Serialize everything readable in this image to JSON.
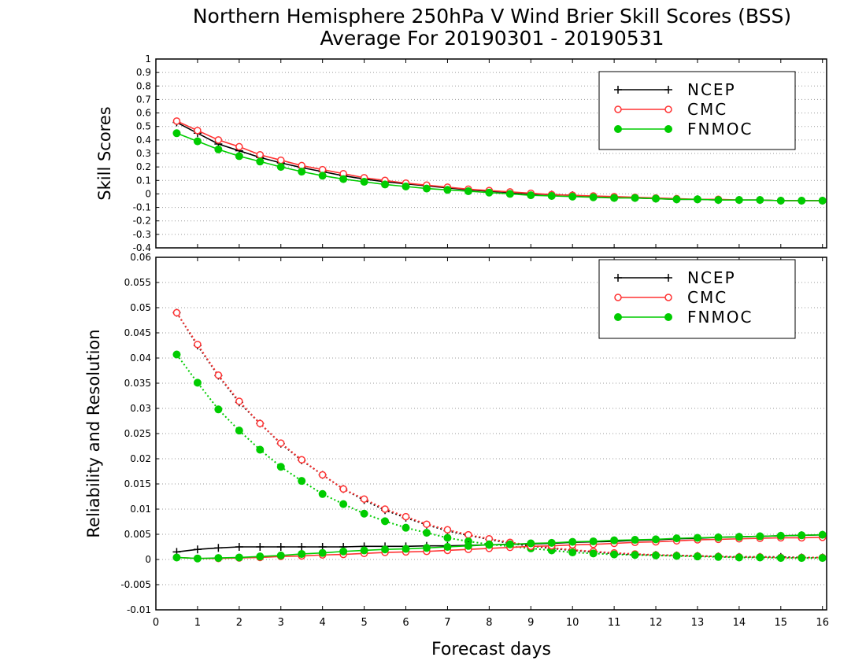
{
  "chart_data": {
    "type": "line",
    "title_line1": "Northern Hemisphere 250hPa V Wind Brier Skill Scores (BSS)",
    "title_line2": "Average For 20190301 - 20190531",
    "xlabel": "Forecast days",
    "x_ticks": [
      "0",
      "1",
      "2",
      "3",
      "4",
      "5",
      "6",
      "7",
      "8",
      "9",
      "10",
      "11",
      "12",
      "13",
      "14",
      "15",
      "16"
    ],
    "xlim": [
      0,
      16.1
    ],
    "x": [
      0.5,
      1.0,
      1.5,
      2.0,
      2.5,
      3.0,
      3.5,
      4.0,
      4.5,
      5.0,
      5.5,
      6.0,
      6.5,
      7.0,
      7.5,
      8.0,
      8.5,
      9.0,
      9.5,
      10.0,
      10.5,
      11.0,
      11.5,
      12.0,
      12.5,
      13.0,
      13.5,
      14.0,
      14.5,
      15.0,
      15.5,
      16.0
    ],
    "legend_entries": [
      "NCEP",
      "CMC",
      "FNMOC"
    ],
    "colors": {
      "NCEP": "#000000",
      "CMC": "#ff3333",
      "FNMOC": "#00cc00"
    },
    "panels": [
      {
        "name": "skill-scores",
        "ylabel": "Skill Scores",
        "ylim": [
          -0.4,
          1
        ],
        "y_ticks": [
          "-0.4",
          "-0.3",
          "-0.2",
          "-0.1",
          "0",
          "0.1",
          "0.2",
          "0.3",
          "0.4",
          "0.5",
          "0.6",
          "0.7",
          "0.8",
          "0.9",
          "1"
        ],
        "legend_placement": "top-right",
        "grid": true,
        "series": [
          {
            "name": "NCEP",
            "style": "solid",
            "marker": "plus",
            "values": [
              0.53,
              0.45,
              0.37,
              0.32,
              0.27,
              0.23,
              0.195,
              0.165,
              0.135,
              0.11,
              0.09,
              0.075,
              0.06,
              0.045,
              0.03,
              0.02,
              0.01,
              0.0,
              -0.005,
              -0.01,
              -0.02,
              -0.025,
              -0.03,
              -0.035,
              -0.04,
              -0.04,
              -0.045,
              -0.045,
              -0.045,
              -0.05,
              -0.05,
              -0.05
            ]
          },
          {
            "name": "CMC",
            "style": "solid",
            "marker": "open-circle",
            "values": [
              0.54,
              0.47,
              0.4,
              0.35,
              0.29,
              0.25,
              0.21,
              0.18,
              0.15,
              0.12,
              0.1,
              0.08,
              0.065,
              0.05,
              0.035,
              0.025,
              0.015,
              0.005,
              -0.005,
              -0.01,
              -0.015,
              -0.02,
              -0.025,
              -0.03,
              -0.035,
              -0.04,
              -0.04,
              -0.045,
              -0.045,
              -0.05,
              -0.05,
              -0.05
            ]
          },
          {
            "name": "FNMOC",
            "style": "solid",
            "marker": "filled-circle",
            "values": [
              0.45,
              0.39,
              0.33,
              0.28,
              0.24,
              0.2,
              0.165,
              0.135,
              0.11,
              0.09,
              0.07,
              0.055,
              0.04,
              0.03,
              0.02,
              0.01,
              0.0,
              -0.01,
              -0.015,
              -0.02,
              -0.025,
              -0.03,
              -0.03,
              -0.035,
              -0.04,
              -0.04,
              -0.045,
              -0.045,
              -0.045,
              -0.05,
              -0.05,
              -0.05
            ]
          }
        ]
      },
      {
        "name": "reliability-resolution",
        "ylabel": "Reliability and Resolution",
        "ylim": [
          -0.01,
          0.06
        ],
        "y_ticks": [
          "-0.01",
          "-0.005",
          "0",
          "0.005",
          "0.01",
          "0.015",
          "0.02",
          "0.025",
          "0.03",
          "0.035",
          "0.04",
          "0.045",
          "0.05",
          "0.055",
          "0.06"
        ],
        "legend_placement": "top-right",
        "grid": true,
        "series": [
          {
            "name": "NCEP resolution",
            "style": "dotted",
            "marker": "plus",
            "color_key": "NCEP",
            "values": [
              0.049,
              0.0425,
              0.0365,
              0.0312,
              0.027,
              0.023,
              0.0197,
              0.0168,
              0.014,
              0.0118,
              0.0098,
              0.0083,
              0.0069,
              0.0057,
              0.0048,
              0.004,
              0.0032,
              0.0027,
              0.0022,
              0.0018,
              0.0015,
              0.0012,
              0.001,
              0.0009,
              0.0008,
              0.0007,
              0.0006,
              0.0005,
              0.0005,
              0.0005,
              0.0004,
              0.0004
            ]
          },
          {
            "name": "NCEP reliability",
            "style": "solid",
            "marker": "plus",
            "color_key": "NCEP",
            "values": [
              0.0015,
              0.002,
              0.0023,
              0.0025,
              0.0025,
              0.0025,
              0.0025,
              0.0025,
              0.0025,
              0.0026,
              0.0026,
              0.0026,
              0.0027,
              0.0027,
              0.0028,
              0.0029,
              0.003,
              0.0031,
              0.0032,
              0.0034,
              0.0035,
              0.0036,
              0.0038,
              0.0039,
              0.0041,
              0.0042,
              0.0044,
              0.0045,
              0.0046,
              0.0047,
              0.0048,
              0.0049
            ]
          },
          {
            "name": "CMC resolution",
            "style": "dotted",
            "marker": "open-circle",
            "color_key": "CMC",
            "values": [
              0.049,
              0.0427,
              0.0366,
              0.0314,
              0.027,
              0.0231,
              0.0198,
              0.0168,
              0.014,
              0.012,
              0.01,
              0.0085,
              0.007,
              0.0059,
              0.0049,
              0.0041,
              0.0034,
              0.0028,
              0.0023,
              0.0019,
              0.0016,
              0.0013,
              0.0011,
              0.0009,
              0.0008,
              0.0007,
              0.0006,
              0.0005,
              0.0005,
              0.0004,
              0.0004,
              0.0004
            ]
          },
          {
            "name": "CMC reliability",
            "style": "solid",
            "marker": "open-circle",
            "color_key": "CMC",
            "values": [
              0.0004,
              0.0002,
              0.0002,
              0.0003,
              0.0004,
              0.0006,
              0.0007,
              0.0009,
              0.001,
              0.0012,
              0.0014,
              0.0015,
              0.0016,
              0.0018,
              0.002,
              0.0022,
              0.0024,
              0.0026,
              0.0027,
              0.0029,
              0.003,
              0.0032,
              0.0034,
              0.0035,
              0.0037,
              0.0039,
              0.004,
              0.0041,
              0.0042,
              0.0043,
              0.0043,
              0.0044
            ]
          },
          {
            "name": "FNMOC resolution",
            "style": "dotted",
            "marker": "filled-circle",
            "color_key": "FNMOC",
            "values": [
              0.0407,
              0.0351,
              0.0298,
              0.0256,
              0.0218,
              0.0184,
              0.0156,
              0.013,
              0.011,
              0.0091,
              0.0076,
              0.0063,
              0.0053,
              0.0043,
              0.0036,
              0.003,
              0.0026,
              0.0022,
              0.0018,
              0.0014,
              0.0012,
              0.001,
              0.0009,
              0.0008,
              0.0007,
              0.0006,
              0.0005,
              0.0004,
              0.0004,
              0.0003,
              0.0003,
              0.0003
            ]
          },
          {
            "name": "FNMOC reliability",
            "style": "solid",
            "marker": "filled-circle",
            "color_key": "FNMOC",
            "values": [
              0.0004,
              0.0002,
              0.0003,
              0.0004,
              0.0006,
              0.0008,
              0.0011,
              0.0013,
              0.0016,
              0.0018,
              0.002,
              0.0021,
              0.0023,
              0.0025,
              0.0027,
              0.0029,
              0.003,
              0.0032,
              0.0033,
              0.0035,
              0.0036,
              0.0038,
              0.0039,
              0.004,
              0.0042,
              0.0043,
              0.0044,
              0.0045,
              0.0046,
              0.0047,
              0.0048,
              0.0049
            ]
          }
        ]
      }
    ]
  }
}
